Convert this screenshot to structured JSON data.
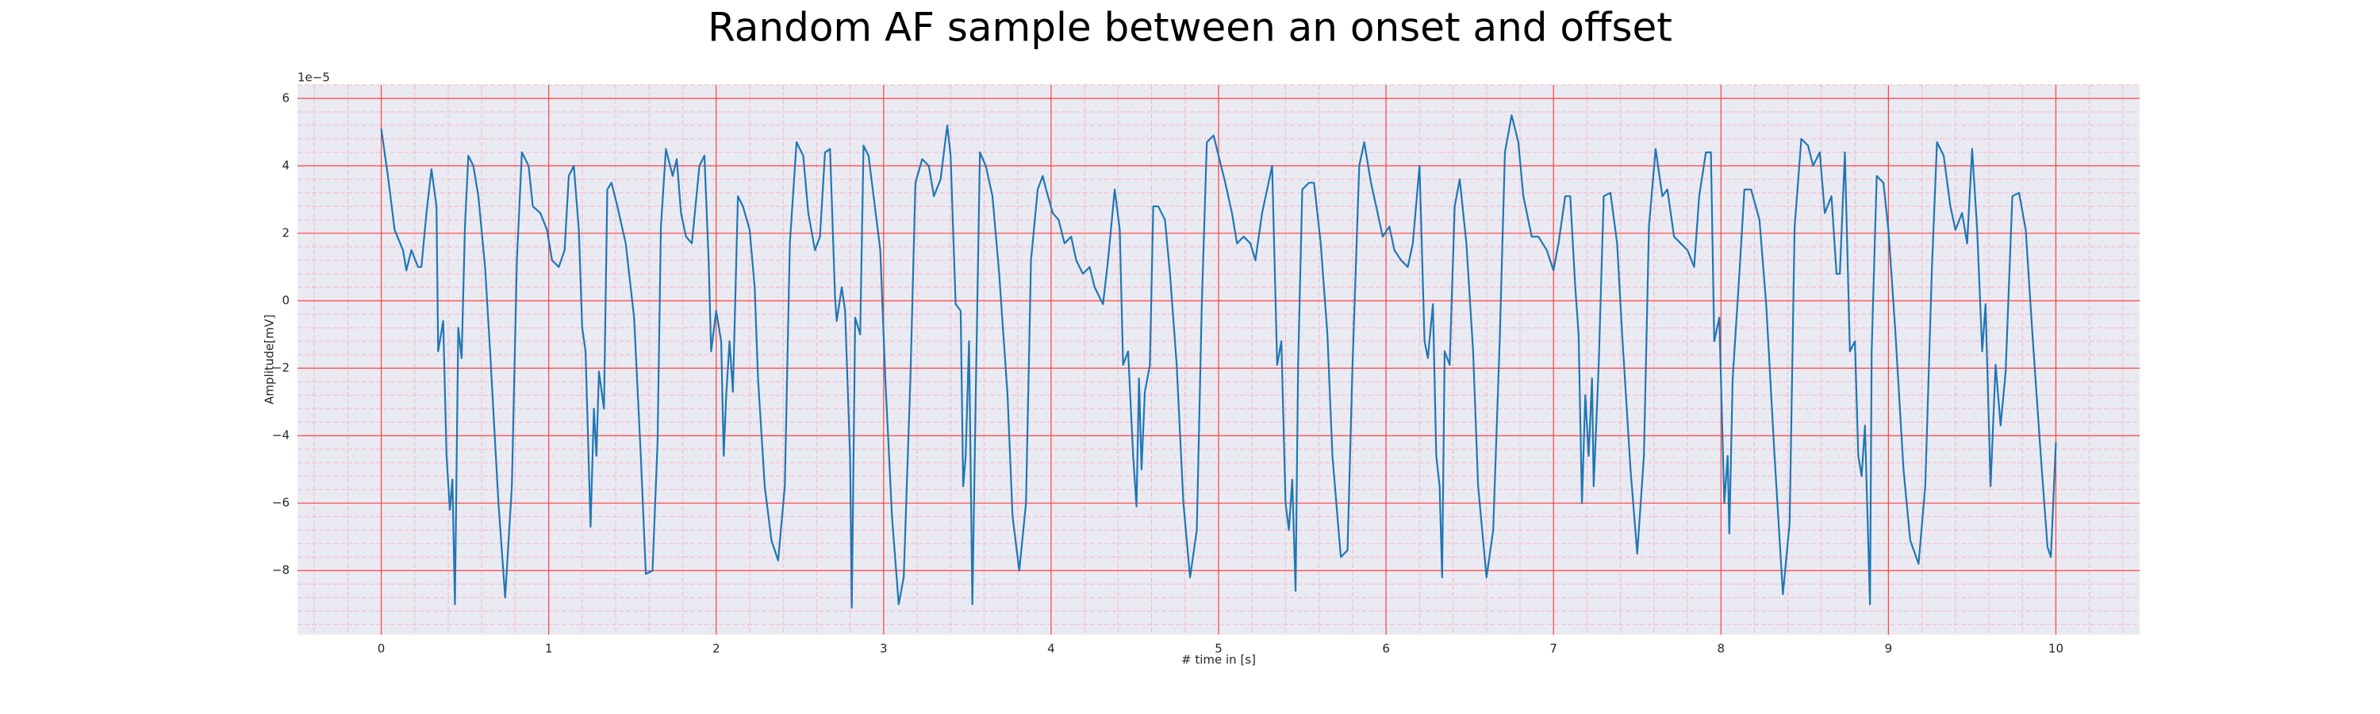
{
  "chart_data": {
    "type": "line",
    "title": "Random AF sample between an onset and offset",
    "xlabel": "# time in [s]",
    "ylabel": "Amplitude[mV]",
    "y_offset_label": "1e−5",
    "color": "#1f77b4",
    "background": "#eaeaf2",
    "grid": true,
    "grid_color": "#ff4040",
    "minor_grid": true,
    "minor_grid_color": "#f4b6c8",
    "xlim": [
      -0.5,
      10.5
    ],
    "ylim": [
      -9.9,
      6.4
    ],
    "xticks": [
      0,
      1,
      2,
      3,
      4,
      5,
      6,
      7,
      8,
      9,
      10
    ],
    "yticks": [
      {
        "value": -8,
        "label": "−8"
      },
      {
        "value": -6,
        "label": "−6"
      },
      {
        "value": -4,
        "label": "−4"
      },
      {
        "value": -2,
        "label": "−2"
      },
      0,
      2,
      4,
      6
    ],
    "x": [
      0.0,
      0.04,
      0.08,
      0.13,
      0.15,
      0.18,
      0.22,
      0.24,
      0.27,
      0.3,
      0.33,
      0.34,
      0.37,
      0.39,
      0.41,
      0.425,
      0.44,
      0.46,
      0.48,
      0.5,
      0.52,
      0.55,
      0.58,
      0.62,
      0.65,
      0.7,
      0.74,
      0.78,
      0.81,
      0.84,
      0.88,
      0.905,
      0.95,
      0.99,
      1.02,
      1.06,
      1.095,
      1.12,
      1.15,
      1.18,
      1.2,
      1.22,
      1.25,
      1.27,
      1.285,
      1.3,
      1.33,
      1.35,
      1.375,
      1.41,
      1.46,
      1.51,
      1.55,
      1.58,
      1.62,
      1.65,
      1.67,
      1.7,
      1.74,
      1.765,
      1.79,
      1.82,
      1.855,
      1.9,
      1.93,
      1.955,
      1.97,
      2.0,
      2.03,
      2.045,
      2.06,
      2.08,
      2.1,
      2.13,
      2.16,
      2.2,
      2.23,
      2.25,
      2.29,
      2.33,
      2.37,
      2.41,
      2.44,
      2.48,
      2.52,
      2.55,
      2.59,
      2.62,
      2.65,
      2.68,
      2.71,
      2.72,
      2.75,
      2.77,
      2.8,
      2.81,
      2.83,
      2.86,
      2.88,
      2.91,
      2.94,
      2.98,
      3.01,
      3.05,
      3.09,
      3.12,
      3.16,
      3.19,
      3.23,
      3.27,
      3.3,
      3.34,
      3.38,
      3.4,
      3.43,
      3.46,
      3.475,
      3.49,
      3.51,
      3.53,
      3.55,
      3.575,
      3.61,
      3.65,
      3.69,
      3.74,
      3.77,
      3.81,
      3.85,
      3.88,
      3.92,
      3.95,
      3.97,
      4.01,
      4.045,
      4.08,
      4.12,
      4.15,
      4.19,
      4.23,
      4.26,
      4.31,
      4.34,
      4.38,
      4.41,
      4.43,
      4.46,
      4.49,
      4.51,
      4.525,
      4.54,
      4.56,
      4.59,
      4.61,
      4.64,
      4.68,
      4.71,
      4.75,
      4.79,
      4.83,
      4.87,
      4.9,
      4.93,
      4.97,
      5.0,
      5.04,
      5.08,
      5.11,
      5.15,
      5.19,
      5.22,
      5.26,
      5.29,
      5.32,
      5.35,
      5.375,
      5.4,
      5.42,
      5.44,
      5.46,
      5.475,
      5.5,
      5.54,
      5.57,
      5.61,
      5.65,
      5.68,
      5.73,
      5.77,
      5.8,
      5.84,
      5.87,
      5.91,
      5.95,
      5.98,
      6.02,
      6.05,
      6.09,
      6.13,
      6.16,
      6.2,
      6.23,
      6.25,
      6.28,
      6.3,
      6.32,
      6.335,
      6.35,
      6.38,
      6.41,
      6.44,
      6.48,
      6.52,
      6.55,
      6.6,
      6.64,
      6.68,
      6.71,
      6.75,
      6.79,
      6.82,
      6.87,
      6.91,
      6.96,
      7.0,
      7.03,
      7.07,
      7.1,
      7.13,
      7.15,
      7.17,
      7.19,
      7.21,
      7.23,
      7.24,
      7.27,
      7.3,
      7.34,
      7.38,
      7.41,
      7.46,
      7.5,
      7.54,
      7.57,
      7.61,
      7.65,
      7.68,
      7.72,
      7.76,
      7.8,
      7.84,
      7.87,
      7.91,
      7.94,
      7.96,
      7.99,
      8.02,
      8.04,
      8.05,
      8.07,
      8.11,
      8.14,
      8.18,
      8.23,
      8.27,
      8.32,
      8.37,
      8.41,
      8.44,
      8.48,
      8.52,
      8.55,
      8.59,
      8.62,
      8.66,
      8.69,
      8.71,
      8.74,
      8.77,
      8.8,
      8.82,
      8.84,
      8.86,
      8.89,
      8.9,
      8.93,
      8.97,
      9.0,
      9.04,
      9.09,
      9.13,
      9.18,
      9.22,
      9.26,
      9.29,
      9.33,
      9.37,
      9.4,
      9.44,
      9.47,
      9.5,
      9.53,
      9.56,
      9.58,
      9.61,
      9.64,
      9.67,
      9.7,
      9.74,
      9.78,
      9.82,
      9.86,
      9.91,
      9.95,
      9.97,
      10.0
    ],
    "values": [
      5.1,
      3.7,
      2.1,
      1.5,
      0.9,
      1.5,
      1.0,
      1.0,
      2.6,
      3.9,
      2.8,
      -1.5,
      -0.6,
      -4.6,
      -6.2,
      -5.3,
      -9.0,
      -0.8,
      -1.7,
      2.2,
      4.3,
      4.0,
      3.1,
      1.0,
      -1.5,
      -6.0,
      -8.8,
      -5.5,
      1.2,
      4.4,
      4.0,
      2.8,
      2.6,
      2.1,
      1.2,
      1.0,
      1.5,
      3.7,
      4.0,
      2.1,
      -0.8,
      -1.5,
      -6.7,
      -3.2,
      -4.6,
      -2.1,
      -3.2,
      3.3,
      3.5,
      2.8,
      1.7,
      -0.5,
      -4.6,
      -8.1,
      -8.0,
      -4.2,
      2.2,
      4.5,
      3.7,
      4.2,
      2.6,
      1.9,
      1.7,
      4.0,
      4.3,
      1.2,
      -1.5,
      -0.3,
      -1.2,
      -4.6,
      -2.8,
      -1.2,
      -2.7,
      3.1,
      2.8,
      2.1,
      0.4,
      -2.3,
      -5.5,
      -7.1,
      -7.7,
      -5.5,
      1.7,
      4.7,
      4.3,
      2.6,
      1.5,
      1.9,
      4.4,
      4.5,
      0.1,
      -0.6,
      0.4,
      -0.3,
      -4.7,
      -9.1,
      -0.5,
      -1.0,
      4.6,
      4.3,
      3.1,
      1.5,
      -2.3,
      -6.4,
      -9.0,
      -8.2,
      -2.3,
      3.5,
      4.2,
      4.0,
      3.1,
      3.6,
      5.2,
      4.3,
      -0.1,
      -0.3,
      -5.5,
      -4.6,
      -1.2,
      -9.0,
      -2.8,
      4.4,
      4.0,
      3.1,
      0.8,
      -2.8,
      -6.4,
      -8.0,
      -6.0,
      1.2,
      3.3,
      3.7,
      3.3,
      2.6,
      2.4,
      1.7,
      1.9,
      1.2,
      0.8,
      1.0,
      0.4,
      -0.1,
      1.2,
      3.3,
      2.1,
      -1.9,
      -1.5,
      -4.6,
      -6.1,
      -2.3,
      -5.0,
      -2.7,
      -1.9,
      2.8,
      2.8,
      2.4,
      0.8,
      -1.9,
      -6.0,
      -8.2,
      -6.8,
      -0.1,
      4.7,
      4.9,
      4.3,
      3.5,
      2.6,
      1.7,
      1.9,
      1.7,
      1.2,
      2.6,
      3.3,
      4.0,
      -1.9,
      -1.2,
      -6.0,
      -6.8,
      -5.3,
      -8.6,
      -1.9,
      3.3,
      3.5,
      3.5,
      1.7,
      -1.0,
      -4.6,
      -7.6,
      -7.4,
      -1.9,
      4.0,
      4.7,
      3.5,
      2.6,
      1.9,
      2.2,
      1.5,
      1.2,
      1.0,
      1.7,
      4.0,
      -1.2,
      -1.7,
      -0.1,
      -4.6,
      -5.5,
      -8.2,
      -1.5,
      -1.9,
      2.8,
      3.6,
      1.7,
      -1.5,
      -5.5,
      -8.2,
      -6.8,
      -1.0,
      4.4,
      5.5,
      4.7,
      3.1,
      1.9,
      1.9,
      1.5,
      0.9,
      1.7,
      3.1,
      3.1,
      0.4,
      -1.0,
      -6.0,
      -2.8,
      -4.6,
      -2.3,
      -5.5,
      -1.9,
      3.1,
      3.2,
      1.7,
      -1.0,
      -5.0,
      -7.5,
      -4.6,
      2.2,
      4.5,
      3.1,
      3.3,
      1.9,
      1.7,
      1.5,
      1.0,
      3.1,
      4.4,
      4.4,
      -1.2,
      -0.5,
      -6.0,
      -4.6,
      -6.9,
      -2.3,
      0.8,
      3.3,
      3.3,
      2.4,
      -0.1,
      -4.6,
      -8.7,
      -6.6,
      2.2,
      4.8,
      4.6,
      4.0,
      4.4,
      2.6,
      3.1,
      0.8,
      0.8,
      4.4,
      -1.5,
      -1.2,
      -4.6,
      -5.2,
      -3.7,
      -9.0,
      -1.5,
      3.7,
      3.5,
      2.1,
      -0.8,
      -5.0,
      -7.1,
      -7.8,
      -5.5,
      1.0,
      4.7,
      4.3,
      2.8,
      2.1,
      2.6,
      1.7,
      4.5,
      2.1,
      -1.5,
      -0.1,
      -5.5,
      -1.9,
      -3.7,
      -2.1,
      3.1,
      3.2,
      2.1,
      -1.0,
      -4.6,
      -7.3,
      -7.6,
      -4.2
    ]
  }
}
